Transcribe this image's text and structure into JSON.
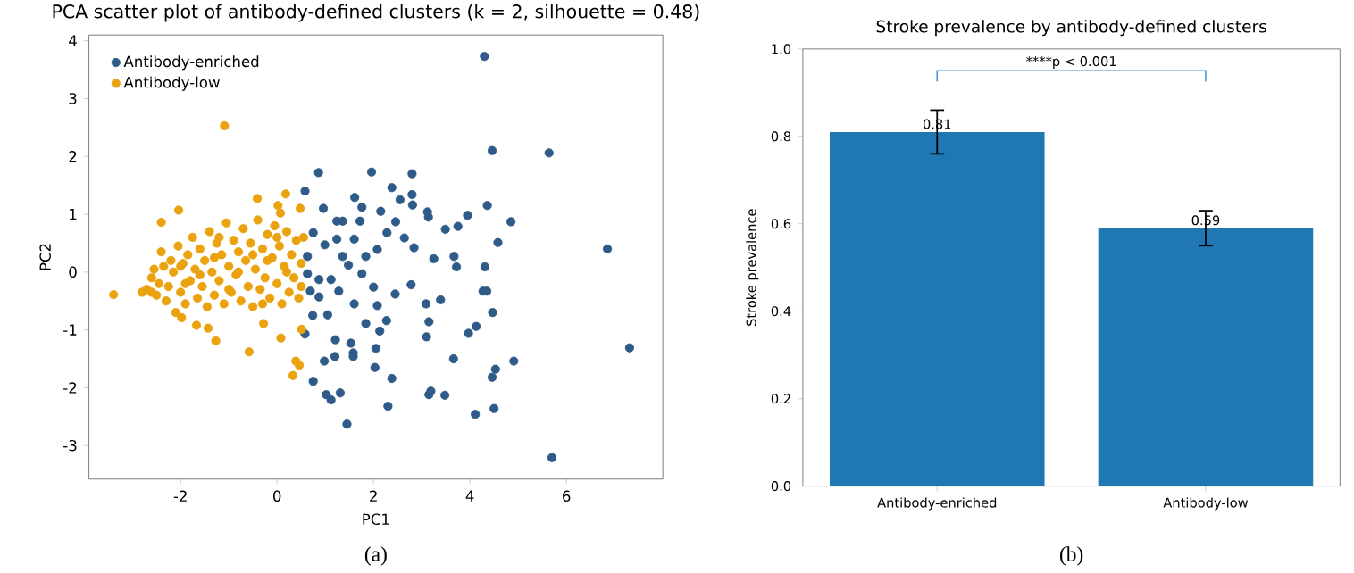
{
  "chart_data": [
    {
      "type": "scatter",
      "title": "PCA scatter plot of antibody-defined clusters (k = 2, silhouette = 0.48)",
      "xlabel": "PC1",
      "ylabel": "PC2",
      "xlim": [
        -3.9,
        8.0
      ],
      "ylim": [
        -3.58,
        4.1
      ],
      "xticks": [
        -2,
        0,
        2,
        4,
        6
      ],
      "yticks": [
        -3,
        -2,
        -1,
        0,
        1,
        2,
        3,
        4
      ],
      "legend": "top left",
      "marker": "circle",
      "annotations": [
        "(a)"
      ],
      "series": [
        {
          "name": "Antibody-enriched",
          "color": "#2e5b88",
          "x": [
            4.3,
            4.46,
            5.64,
            6.85,
            7.31,
            5.7,
            1.45,
            4.11,
            4.5,
            2.3,
            1.12,
            0.75,
            1.02,
            1.31,
            3.15,
            3.48,
            3.19,
            2.03,
            2.38,
            4.46,
            4.53,
            4.91,
            3.66,
            1.58,
            1.58,
            1.2,
            0.98,
            1.21,
            0.58,
            1.53,
            2.05,
            2.13,
            3.1,
            3.97,
            4.13,
            3.15,
            4.47,
            3.39,
            3.09,
            4.35,
            4.27,
            2.78,
            4.31,
            3.72,
            3.67,
            3.25,
            4.58,
            4.85,
            4.36,
            3.95,
            3.75,
            3.49,
            3.14,
            3.12,
            2.81,
            2.8,
            2.8,
            2.38,
            1.96,
            0.86,
            0.58,
            1.61,
            0.96,
            1.76,
            2.55,
            2.15,
            2.28,
            2.46,
            2.84,
            2.64,
            2.08,
            1.76,
            2.0,
            1.6,
            1.28,
            1.05,
            0.74,
            1.12,
            0.87,
            1.36,
            0.99,
            0.75,
            0.63,
            0.63,
            1.36,
            1.6,
            1.24,
            1.84,
            2.08,
            2.45,
            2.27,
            1.84,
            1.48,
            0.87,
            0.69,
            1.24,
            1.72
          ],
          "values": [
            3.73,
            2.1,
            2.06,
            0.4,
            -1.31,
            -3.21,
            -2.63,
            -2.46,
            -2.36,
            -2.32,
            -2.21,
            -1.89,
            -2.12,
            -2.09,
            -2.12,
            -2.13,
            -2.06,
            -1.65,
            -1.84,
            -1.82,
            -1.68,
            -1.54,
            -1.5,
            -1.4,
            -1.46,
            -1.46,
            -1.54,
            -1.17,
            -1.07,
            -1.23,
            -1.32,
            -1.02,
            -1.12,
            -1.06,
            -0.94,
            -0.86,
            -0.7,
            -0.48,
            -0.55,
            -0.33,
            -0.33,
            -0.22,
            0.09,
            0.09,
            0.27,
            0.23,
            0.51,
            0.87,
            1.15,
            0.98,
            0.79,
            0.74,
            0.95,
            1.04,
            1.16,
            1.34,
            1.7,
            1.46,
            1.73,
            1.72,
            1.4,
            1.29,
            1.1,
            1.12,
            1.25,
            1.05,
            0.68,
            0.87,
            0.42,
            0.59,
            0.39,
            -0.03,
            -0.26,
            -0.55,
            -0.33,
            -0.74,
            -0.75,
            -0.13,
            -0.13,
            0.27,
            0.47,
            0.68,
            0.27,
            -0.03,
            0.88,
            0.57,
            0.57,
            0.27,
            -0.58,
            -0.38,
            -0.84,
            -0.89,
            0.12,
            -0.43,
            -0.33,
            0.88,
            0.88
          ]
        },
        {
          "name": "Antibody-low",
          "color": "#eba20f",
          "x": [
            -3.39,
            -1.09,
            -2.4,
            -2.04,
            -0.41,
            0.18,
            0.48,
            0.02,
            0.07,
            -1.43,
            -1.27,
            -0.58,
            0.08,
            0.39,
            0.33,
            0.46,
            -1.67,
            -1.98,
            0.51,
            -0.28,
            -2.8,
            -2.7,
            -2.6,
            -2.55,
            -2.5,
            -2.45,
            -2.4,
            -2.35,
            -2.3,
            -2.25,
            -2.2,
            -2.15,
            -2.1,
            -2.05,
            -2.0,
            -1.95,
            -1.9,
            -1.85,
            -1.8,
            -1.75,
            -1.7,
            -1.65,
            -1.6,
            -1.55,
            -1.5,
            -1.45,
            -1.4,
            -1.35,
            -1.3,
            -1.25,
            -1.2,
            -1.15,
            -1.1,
            -1.05,
            -1.0,
            -0.95,
            -0.9,
            -0.85,
            -0.8,
            -0.75,
            -0.7,
            -0.65,
            -0.6,
            -0.55,
            -0.5,
            -0.45,
            -0.4,
            -0.35,
            -0.3,
            -0.25,
            -0.2,
            -0.15,
            -0.1,
            -0.05,
            0.0,
            0.05,
            0.1,
            0.15,
            0.2,
            0.25,
            0.3,
            0.35,
            0.4,
            0.45,
            0.5,
            0.55,
            0.5,
            -1.6,
            -1.0,
            -0.5,
            -2.0,
            -1.3,
            -0.8,
            0.2,
            -0.2,
            -1.9,
            -2.6,
            -1.2,
            -0.3,
            0.0
          ],
          "values": [
            -0.39,
            2.53,
            0.86,
            1.07,
            1.27,
            1.35,
            1.1,
            1.15,
            1.02,
            -0.97,
            -1.19,
            -1.38,
            -1.14,
            -1.54,
            -1.79,
            -1.61,
            -0.92,
            -0.79,
            -0.99,
            -0.89,
            -0.35,
            -0.3,
            -0.1,
            0.05,
            -0.4,
            -0.2,
            0.35,
            0.1,
            -0.5,
            -0.25,
            0.2,
            0.0,
            -0.7,
            0.45,
            -0.35,
            0.15,
            -0.55,
            0.3,
            -0.15,
            0.6,
            0.05,
            -0.45,
            0.4,
            -0.25,
            0.2,
            -0.6,
            0.7,
            0.0,
            -0.4,
            0.5,
            -0.15,
            0.3,
            -0.55,
            0.85,
            0.1,
            -0.35,
            0.55,
            -0.05,
            0.35,
            -0.5,
            0.75,
            0.2,
            -0.25,
            0.5,
            -0.6,
            0.05,
            0.9,
            -0.3,
            0.4,
            -0.1,
            0.65,
            -0.45,
            0.25,
            0.8,
            -0.2,
            0.45,
            -0.55,
            0.1,
            0.7,
            -0.35,
            0.3,
            -0.1,
            0.55,
            -0.45,
            0.15,
            0.6,
            -0.25,
            -0.05,
            -0.3,
            0.3,
            0.1,
            0.25,
            0.0,
            0.0,
            0.2,
            -0.2,
            -0.35,
            0.6,
            -0.55,
            0.6
          ]
        }
      ]
    },
    {
      "type": "bar",
      "title": "Stroke prevalence by antibody-defined clusters",
      "ylabel": "Stroke prevalence",
      "categories": [
        "Antibody-enriched",
        "Antibody-low"
      ],
      "values": [
        0.81,
        0.59
      ],
      "errors": [
        [
          0.76,
          0.86
        ],
        [
          0.55,
          0.63
        ]
      ],
      "color": "#1f77b4",
      "ylim": [
        0,
        1.0
      ],
      "yticks": [
        {
          "value": 0,
          "label": "0.0"
        },
        0.2,
        0.4,
        0.6,
        0.8,
        {
          "value": 1.0,
          "label": "1.0"
        }
      ],
      "data_labels": true,
      "annotations": [
        "****p < 0.001",
        "(b)"
      ]
    }
  ]
}
